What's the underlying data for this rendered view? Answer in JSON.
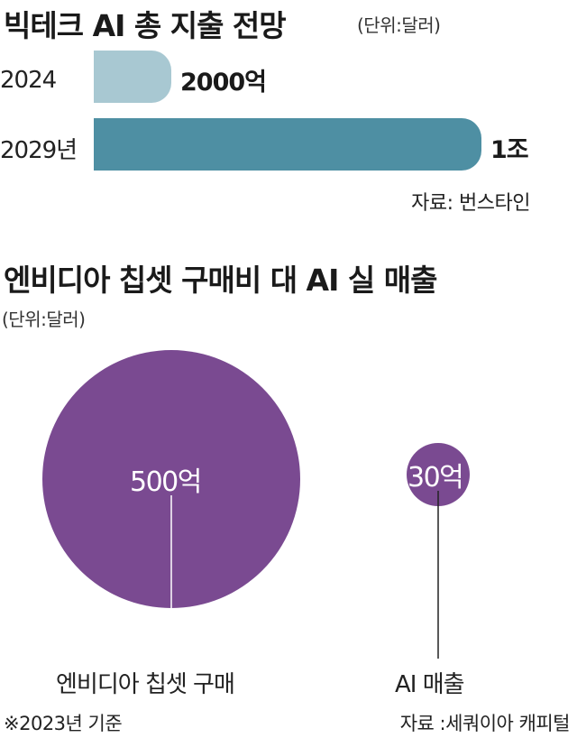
{
  "chart_data": [
    {
      "type": "bar",
      "orientation": "horizontal",
      "title": "빅테크 AI 총 지출 전망",
      "unit_note": "(단위:달러)",
      "categories": [
        "2024",
        "2029년"
      ],
      "values": [
        2000,
        10000
      ],
      "value_labels": [
        "2000억",
        "1조"
      ],
      "colors": [
        "#a8c8d2",
        "#4e8fa3"
      ],
      "source": "자료: 번스타인"
    },
    {
      "type": "bubble",
      "title": "엔비디아 칩셋 구매비 대 AI 실 매출",
      "unit_note": "(단위:달러)",
      "categories": [
        "엔비디아 칩셋 구매",
        "AI 매출"
      ],
      "values": [
        500,
        30
      ],
      "value_labels": [
        "500억",
        "30억"
      ],
      "color": "#7a4a91",
      "note": "※2023년 기준",
      "source": "자료 :세쿼이아 캐피털"
    }
  ]
}
